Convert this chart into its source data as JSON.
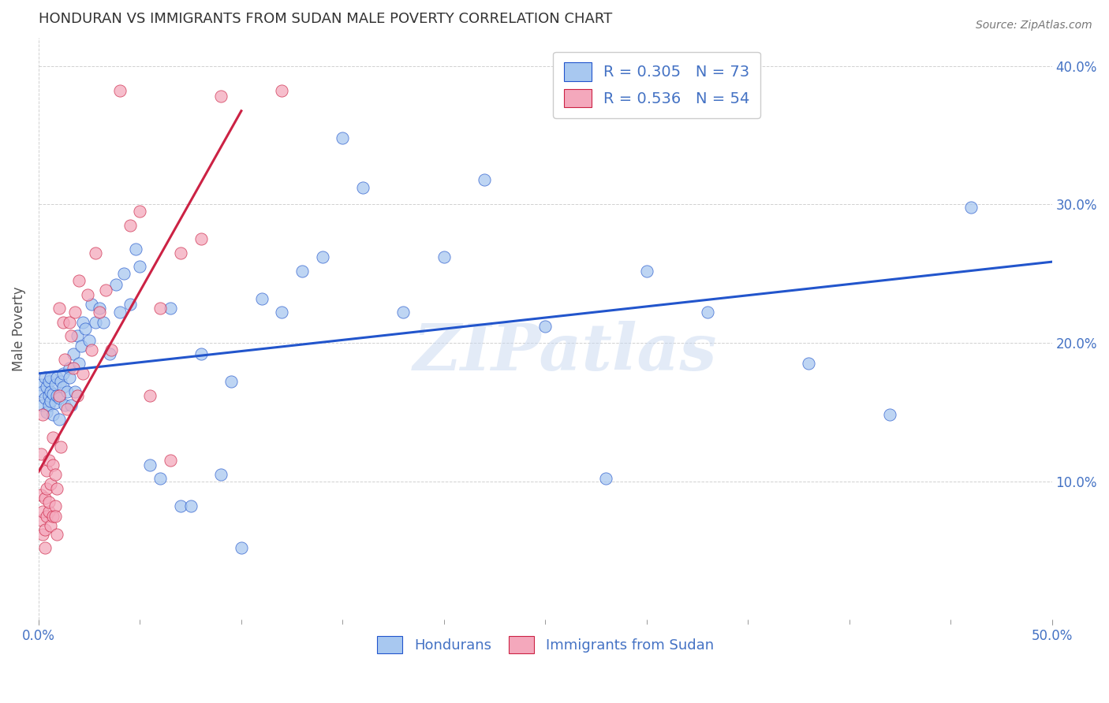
{
  "title": "HONDURAN VS IMMIGRANTS FROM SUDAN MALE POVERTY CORRELATION CHART",
  "source": "Source: ZipAtlas.com",
  "ylabel": "Male Poverty",
  "xlim": [
    0.0,
    0.5
  ],
  "ylim": [
    0.0,
    0.42
  ],
  "xtick_major": [
    0.0,
    0.5
  ],
  "xtick_major_labels": [
    "0.0%",
    "50.0%"
  ],
  "xtick_minor": [
    0.05,
    0.1,
    0.15,
    0.2,
    0.25,
    0.3,
    0.35,
    0.4,
    0.45
  ],
  "ytick_right": [
    0.1,
    0.2,
    0.3,
    0.4
  ],
  "ytick_right_labels": [
    "10.0%",
    "20.0%",
    "30.0%",
    "40.0%"
  ],
  "watermark": "ZIPatlas",
  "legend_labels": [
    "Hondurans",
    "Immigrants from Sudan"
  ],
  "R_honduran": 0.305,
  "N_honduran": 73,
  "R_sudan": 0.536,
  "N_sudan": 54,
  "blue_color": "#A8C8F0",
  "pink_color": "#F4A8BC",
  "line_blue": "#2255CC",
  "line_pink": "#CC2244",
  "title_color": "#333333",
  "axis_color": "#4472C4",
  "background_color": "#FFFFFF",
  "grid_color": "#CCCCCC",
  "honduran_x": [
    0.001,
    0.002,
    0.002,
    0.003,
    0.003,
    0.004,
    0.004,
    0.005,
    0.005,
    0.005,
    0.006,
    0.006,
    0.006,
    0.007,
    0.007,
    0.008,
    0.008,
    0.009,
    0.009,
    0.01,
    0.01,
    0.011,
    0.012,
    0.012,
    0.013,
    0.014,
    0.015,
    0.015,
    0.016,
    0.017,
    0.018,
    0.019,
    0.02,
    0.021,
    0.022,
    0.023,
    0.025,
    0.026,
    0.028,
    0.03,
    0.032,
    0.035,
    0.038,
    0.04,
    0.042,
    0.045,
    0.048,
    0.05,
    0.055,
    0.06,
    0.065,
    0.07,
    0.075,
    0.08,
    0.09,
    0.095,
    0.1,
    0.11,
    0.12,
    0.13,
    0.14,
    0.15,
    0.16,
    0.18,
    0.2,
    0.22,
    0.25,
    0.28,
    0.3,
    0.33,
    0.38,
    0.42,
    0.46
  ],
  "honduran_y": [
    0.17,
    0.165,
    0.155,
    0.175,
    0.16,
    0.15,
    0.168,
    0.155,
    0.162,
    0.172,
    0.158,
    0.165,
    0.175,
    0.148,
    0.163,
    0.157,
    0.17,
    0.162,
    0.175,
    0.145,
    0.16,
    0.172,
    0.168,
    0.178,
    0.155,
    0.165,
    0.182,
    0.175,
    0.155,
    0.192,
    0.165,
    0.205,
    0.185,
    0.198,
    0.215,
    0.21,
    0.202,
    0.228,
    0.215,
    0.225,
    0.215,
    0.192,
    0.242,
    0.222,
    0.25,
    0.228,
    0.268,
    0.255,
    0.112,
    0.102,
    0.225,
    0.082,
    0.082,
    0.192,
    0.105,
    0.172,
    0.052,
    0.232,
    0.222,
    0.252,
    0.262,
    0.348,
    0.312,
    0.222,
    0.262,
    0.318,
    0.212,
    0.102,
    0.252,
    0.222,
    0.185,
    0.148,
    0.298
  ],
  "sudan_x": [
    0.001,
    0.001,
    0.001,
    0.002,
    0.002,
    0.002,
    0.003,
    0.003,
    0.003,
    0.004,
    0.004,
    0.004,
    0.005,
    0.005,
    0.005,
    0.006,
    0.006,
    0.007,
    0.007,
    0.007,
    0.008,
    0.008,
    0.008,
    0.009,
    0.009,
    0.01,
    0.01,
    0.011,
    0.012,
    0.013,
    0.014,
    0.015,
    0.016,
    0.017,
    0.018,
    0.019,
    0.02,
    0.022,
    0.024,
    0.026,
    0.028,
    0.03,
    0.033,
    0.036,
    0.04,
    0.045,
    0.05,
    0.055,
    0.06,
    0.065,
    0.07,
    0.08,
    0.09,
    0.12
  ],
  "sudan_y": [
    0.12,
    0.09,
    0.072,
    0.148,
    0.078,
    0.062,
    0.088,
    0.065,
    0.052,
    0.095,
    0.075,
    0.108,
    0.078,
    0.115,
    0.085,
    0.068,
    0.098,
    0.132,
    0.112,
    0.075,
    0.105,
    0.082,
    0.075,
    0.095,
    0.062,
    0.225,
    0.162,
    0.125,
    0.215,
    0.188,
    0.152,
    0.215,
    0.205,
    0.182,
    0.222,
    0.162,
    0.245,
    0.178,
    0.235,
    0.195,
    0.265,
    0.222,
    0.238,
    0.195,
    0.382,
    0.285,
    0.295,
    0.162,
    0.225,
    0.115,
    0.265,
    0.275,
    0.378,
    0.382
  ]
}
